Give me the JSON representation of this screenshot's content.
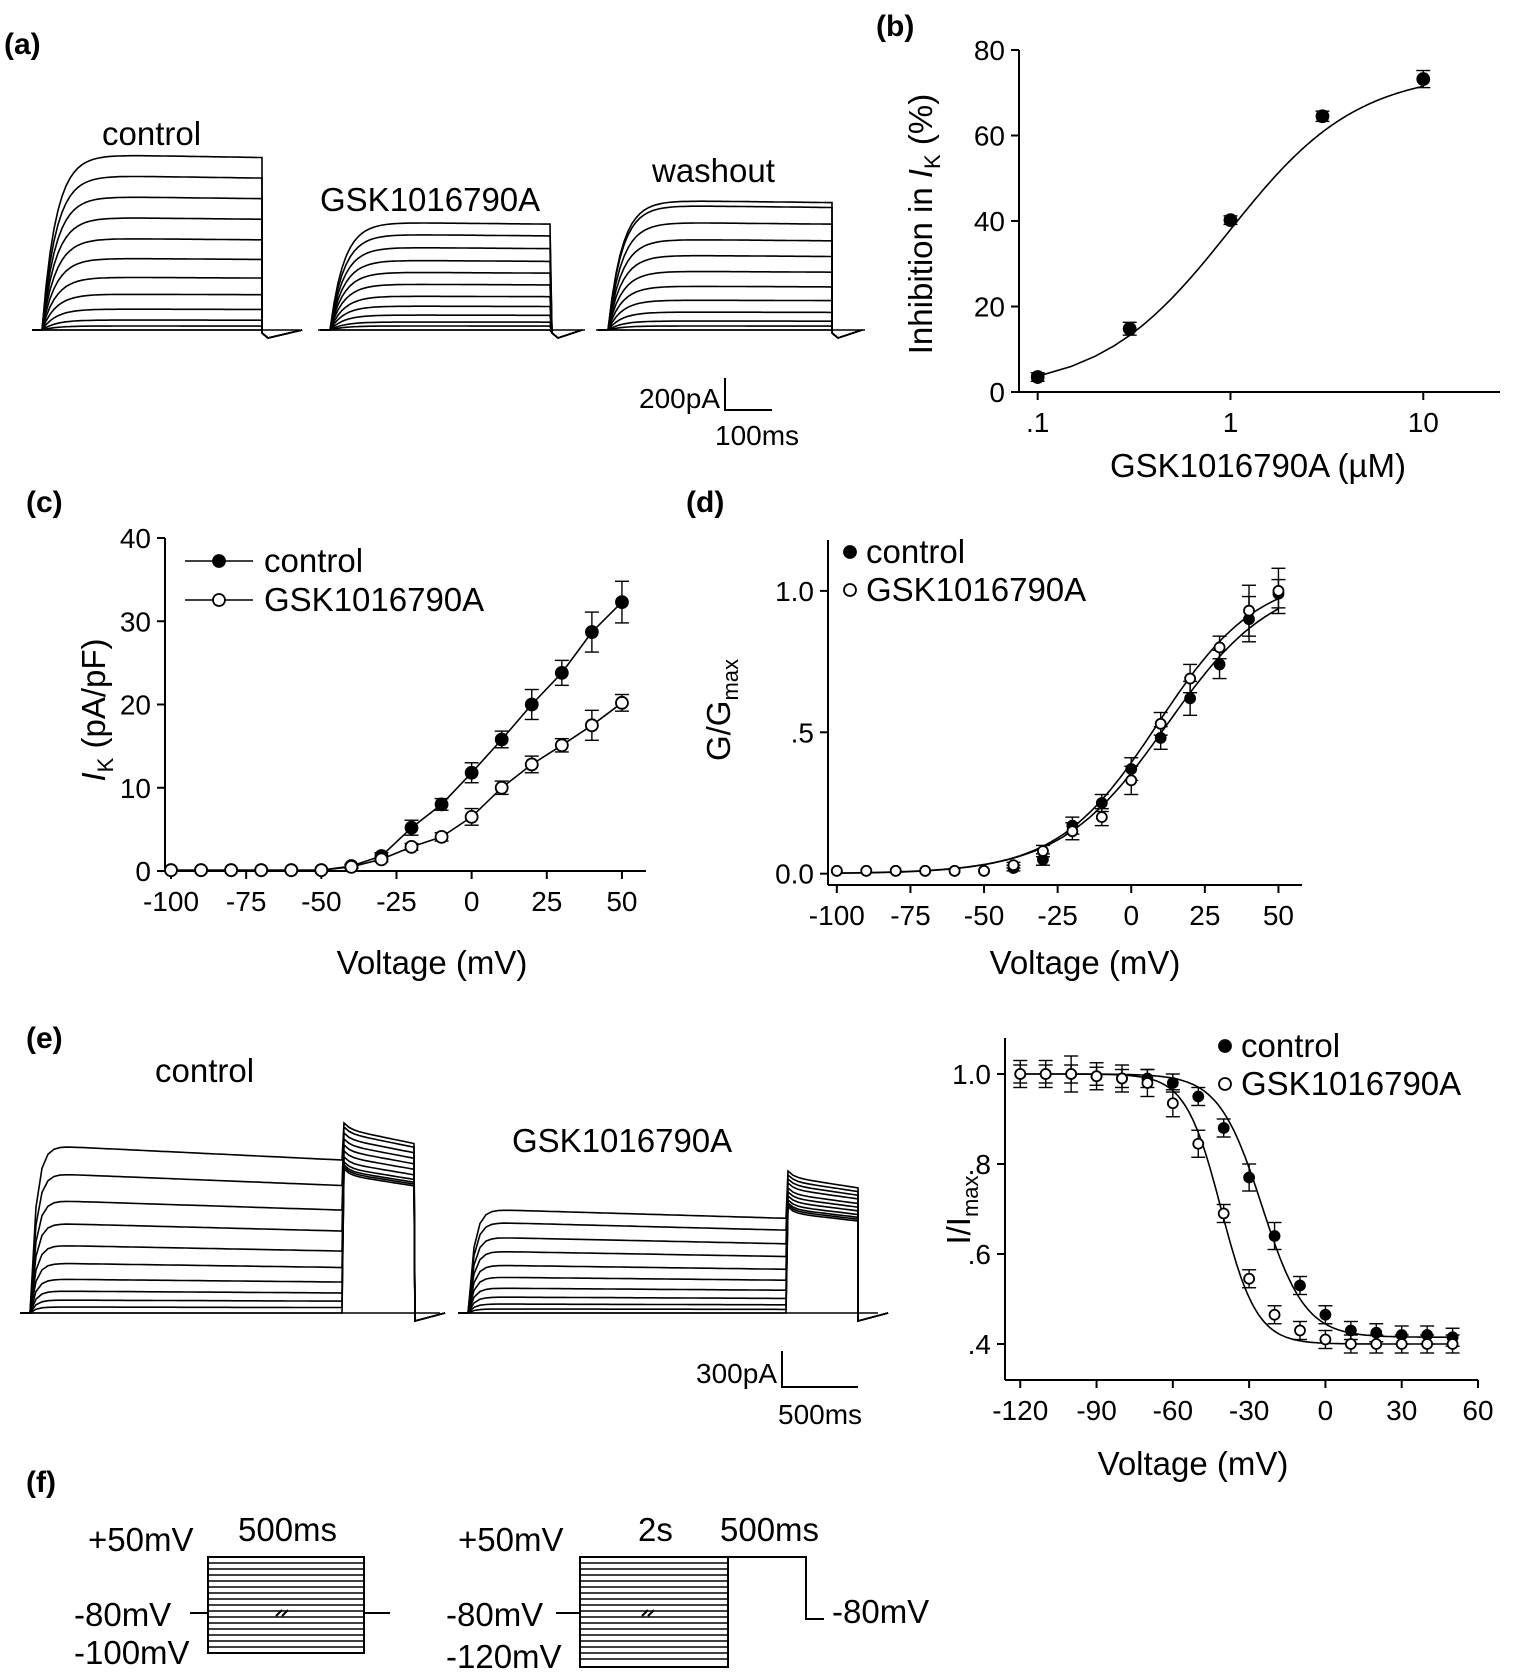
{
  "panel_letters": {
    "a": "(a)",
    "b": "(b)",
    "c": "(c)",
    "d": "(d)",
    "e": "(e)",
    "f": "(f)"
  },
  "panel_a": {
    "labels": {
      "control": "control",
      "drug": "GSK1016790A",
      "washout": "washout"
    },
    "scale_current": "200pA",
    "scale_time": "100ms"
  },
  "panel_e": {
    "labels": {
      "control": "control",
      "drug": "GSK1016790A"
    },
    "scale_current": "300pA",
    "scale_time": "500ms"
  },
  "panel_f": {
    "left": {
      "v_top": "+50mV",
      "duration": "500ms",
      "v_hold": "-80mV",
      "v_bottom": "-100mV"
    },
    "right": {
      "v_top": "+50mV",
      "duration1": "2s",
      "duration2": "500ms",
      "v_hold": "-80mV",
      "v_bottom": "-120mV",
      "v_end": "-80mV"
    }
  },
  "chart_data": [
    {
      "id": "b",
      "type": "scatter",
      "xlabel": "GSK1016790A (µM)",
      "ylabel_main": "Inhibition in ",
      "ylabel_italic": "I",
      "ylabel_sub": "K",
      "ylabel_tail": " (%)",
      "xscale": "log",
      "xlim": [
        0.08,
        25
      ],
      "ylim": [
        0,
        80
      ],
      "xticks": [
        {
          "v": 0.1,
          "label": ".1"
        },
        {
          "v": 1,
          "label": "1"
        },
        {
          "v": 10,
          "label": "10"
        }
      ],
      "yticks": [
        {
          "v": 0,
          "label": "0"
        },
        {
          "v": 20,
          "label": "20"
        },
        {
          "v": 40,
          "label": "40"
        },
        {
          "v": 60,
          "label": "60"
        },
        {
          "v": 80,
          "label": "80"
        }
      ],
      "series": [
        {
          "marker": "filled",
          "x": [
            0.1,
            0.3,
            1,
            3,
            10
          ],
          "y": [
            3.5,
            14.8,
            40.2,
            64.5,
            73.2
          ],
          "err": [
            1.0,
            1.5,
            1.0,
            1.2,
            2.0
          ]
        }
      ],
      "fit": {
        "bottom": 0,
        "top": 75,
        "ic50": 0.98,
        "hill": 1.3
      }
    },
    {
      "id": "c",
      "type": "line",
      "xlabel": "Voltage (mV)",
      "ylabel_italic": "I",
      "ylabel_sub": "K",
      "ylabel_tail": " (pA/pF)",
      "xlim": [
        -102,
        58
      ],
      "ylim": [
        0,
        40
      ],
      "xticks": [
        {
          "v": -100,
          "label": "-100"
        },
        {
          "v": -75,
          "label": "-75"
        },
        {
          "v": -50,
          "label": "-50"
        },
        {
          "v": -25,
          "label": "-25"
        },
        {
          "v": 0,
          "label": "0"
        },
        {
          "v": 25,
          "label": "25"
        },
        {
          "v": 50,
          "label": "50"
        }
      ],
      "yticks": [
        {
          "v": 0,
          "label": "0"
        },
        {
          "v": 10,
          "label": "10"
        },
        {
          "v": 20,
          "label": "20"
        },
        {
          "v": 30,
          "label": "30"
        },
        {
          "v": 40,
          "label": "40"
        }
      ],
      "legend": {
        "position": "top-left"
      },
      "series": [
        {
          "name": "control",
          "marker": "filled",
          "x": [
            -100,
            -90,
            -80,
            -70,
            -60,
            -50,
            -40,
            -30,
            -20,
            -10,
            0,
            10,
            20,
            30,
            40,
            50
          ],
          "y": [
            0.1,
            0.1,
            0.1,
            0.1,
            0.1,
            0.1,
            0.6,
            1.8,
            5.2,
            8.0,
            11.8,
            15.8,
            20.0,
            23.8,
            28.7,
            32.3
          ],
          "err": [
            0,
            0,
            0,
            0,
            0,
            0,
            0.2,
            0.4,
            0.9,
            0.7,
            1.2,
            1.0,
            1.8,
            1.5,
            2.4,
            2.5
          ]
        },
        {
          "name": "GSK1016790A",
          "marker": "open",
          "x": [
            -100,
            -90,
            -80,
            -70,
            -60,
            -50,
            -40,
            -30,
            -20,
            -10,
            0,
            10,
            20,
            30,
            40,
            50
          ],
          "y": [
            0.1,
            0.1,
            0.1,
            0.1,
            0.1,
            0.1,
            0.5,
            1.4,
            2.9,
            4.1,
            6.5,
            10.0,
            12.8,
            15.1,
            17.5,
            20.2
          ],
          "err": [
            0,
            0,
            0,
            0,
            0,
            0,
            0.2,
            0.3,
            0.4,
            0.5,
            1.0,
            0.8,
            1.0,
            0.8,
            1.8,
            1.0
          ]
        }
      ]
    },
    {
      "id": "d",
      "type": "scatter",
      "xlabel": "Voltage (mV)",
      "ylabel_main": "G/G",
      "ylabel_sub": "max",
      "xlim": [
        -103,
        58
      ],
      "ylim": [
        -0.04,
        1.18
      ],
      "xticks": [
        {
          "v": -100,
          "label": "-100"
        },
        {
          "v": -75,
          "label": "-75"
        },
        {
          "v": -50,
          "label": "-50"
        },
        {
          "v": -25,
          "label": "-25"
        },
        {
          "v": 0,
          "label": "0"
        },
        {
          "v": 25,
          "label": "25"
        },
        {
          "v": 50,
          "label": "50"
        }
      ],
      "yticks": [
        {
          "v": 0,
          "label": "0.0"
        },
        {
          "v": 0.5,
          "label": ".5"
        },
        {
          "v": 1.0,
          "label": "1.0"
        }
      ],
      "legend": {
        "position": "top-left"
      },
      "series": [
        {
          "name": "control",
          "marker": "filled",
          "x": [
            -100,
            -90,
            -80,
            -70,
            -60,
            -50,
            -40,
            -30,
            -20,
            -10,
            0,
            10,
            20,
            30,
            40,
            50
          ],
          "y": [
            0.01,
            0.01,
            0.01,
            0.01,
            0.01,
            0.01,
            0.02,
            0.05,
            0.17,
            0.25,
            0.37,
            0.48,
            0.62,
            0.74,
            0.9,
            0.99
          ],
          "err": [
            0,
            0,
            0,
            0,
            0,
            0,
            0.01,
            0.02,
            0.03,
            0.03,
            0.04,
            0.04,
            0.06,
            0.05,
            0.08,
            0.05
          ]
        },
        {
          "name": "GSK1016790A",
          "marker": "open",
          "x": [
            -100,
            -90,
            -80,
            -70,
            -60,
            -50,
            -40,
            -30,
            -20,
            -10,
            0,
            10,
            20,
            30,
            40,
            50
          ],
          "y": [
            0.01,
            0.01,
            0.01,
            0.01,
            0.01,
            0.01,
            0.03,
            0.08,
            0.15,
            0.2,
            0.33,
            0.53,
            0.69,
            0.8,
            0.93,
            1.0
          ],
          "err": [
            0,
            0,
            0,
            0,
            0,
            0,
            0.01,
            0.02,
            0.03,
            0.03,
            0.05,
            0.04,
            0.05,
            0.04,
            0.09,
            0.08
          ]
        }
      ],
      "fits": [
        {
          "v_half": 12,
          "k": 18,
          "gmax": 1.05
        },
        {
          "v_half": 9,
          "k": 17,
          "gmax": 1.06
        }
      ]
    },
    {
      "id": "e",
      "type": "scatter",
      "xlabel": "Voltage (mV)",
      "ylabel_main": "I/I",
      "ylabel_sub": "max",
      "xlim": [
        -126,
        60
      ],
      "ylim": [
        0.32,
        1.08
      ],
      "xticks": [
        {
          "v": -120,
          "label": "-120"
        },
        {
          "v": -90,
          "label": "-90"
        },
        {
          "v": -60,
          "label": "-60"
        },
        {
          "v": -30,
          "label": "-30"
        },
        {
          "v": 0,
          "label": "0"
        },
        {
          "v": 30,
          "label": "30"
        },
        {
          "v": 60,
          "label": "60"
        }
      ],
      "yticks": [
        {
          "v": 0.4,
          "label": ".4"
        },
        {
          "v": 0.6,
          "label": ".6"
        },
        {
          "v": 0.8,
          "label": ".8"
        },
        {
          "v": 1.0,
          "label": "1.0"
        }
      ],
      "legend": {
        "position": "top-right"
      },
      "series": [
        {
          "name": "control",
          "marker": "filled",
          "x": [
            -120,
            -110,
            -100,
            -90,
            -80,
            -70,
            -60,
            -50,
            -40,
            -30,
            -20,
            -10,
            0,
            10,
            20,
            30,
            40,
            50
          ],
          "y": [
            1.0,
            1.0,
            1.0,
            0.995,
            0.99,
            0.99,
            0.98,
            0.95,
            0.88,
            0.77,
            0.64,
            0.53,
            0.465,
            0.43,
            0.425,
            0.42,
            0.42,
            0.415
          ],
          "err": [
            0.02,
            0.02,
            0.02,
            0.02,
            0.02,
            0.02,
            0.02,
            0.02,
            0.02,
            0.03,
            0.03,
            0.02,
            0.02,
            0.02,
            0.02,
            0.02,
            0.02,
            0.02
          ]
        },
        {
          "name": "GSK1016790A",
          "marker": "open",
          "x": [
            -120,
            -110,
            -100,
            -90,
            -80,
            -70,
            -60,
            -50,
            -40,
            -30,
            -20,
            -10,
            0,
            10,
            20,
            30,
            40,
            50
          ],
          "y": [
            1.0,
            1.0,
            1.0,
            0.995,
            0.99,
            0.98,
            0.935,
            0.845,
            0.69,
            0.545,
            0.465,
            0.43,
            0.41,
            0.4,
            0.4,
            0.4,
            0.4,
            0.4
          ],
          "err": [
            0.03,
            0.03,
            0.04,
            0.03,
            0.03,
            0.03,
            0.03,
            0.03,
            0.02,
            0.02,
            0.02,
            0.02,
            0.02,
            0.02,
            0.02,
            0.02,
            0.02,
            0.02
          ]
        }
      ],
      "fits": [
        {
          "v_half": -25,
          "k": 8.5,
          "bottom": 0.415,
          "top": 1.0
        },
        {
          "v_half": -41,
          "k": 7.0,
          "bottom": 0.4,
          "top": 1.0
        }
      ]
    }
  ]
}
